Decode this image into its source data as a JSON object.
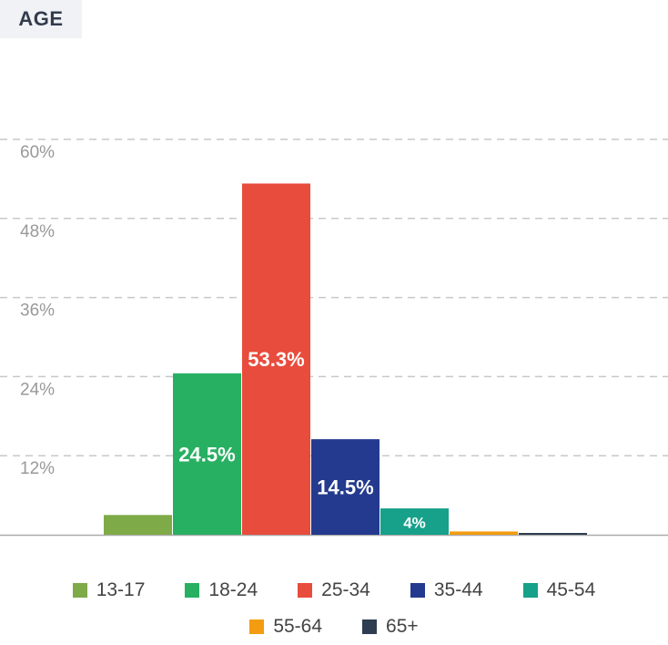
{
  "chart_data": {
    "type": "bar",
    "title": "AGE",
    "categories": [
      "13-17",
      "18-24",
      "25-34",
      "35-44",
      "45-54",
      "55-64",
      "65+"
    ],
    "values": [
      3,
      24.5,
      53.3,
      14.5,
      4,
      0.5,
      0.2
    ],
    "labels": [
      "",
      "24.5%",
      "53.3%",
      "14.5%",
      "4%",
      "",
      ""
    ],
    "colors": [
      "#7faa48",
      "#27b062",
      "#e84c3d",
      "#233a8e",
      "#17a08a",
      "#f39c11",
      "#2e3d50"
    ],
    "ylim": [
      0,
      60
    ],
    "yticks": [
      12,
      24,
      36,
      48,
      60
    ],
    "ytick_labels": [
      "12%",
      "24%",
      "36%",
      "48%",
      "60%"
    ],
    "grid": true,
    "legend": "bottom"
  }
}
